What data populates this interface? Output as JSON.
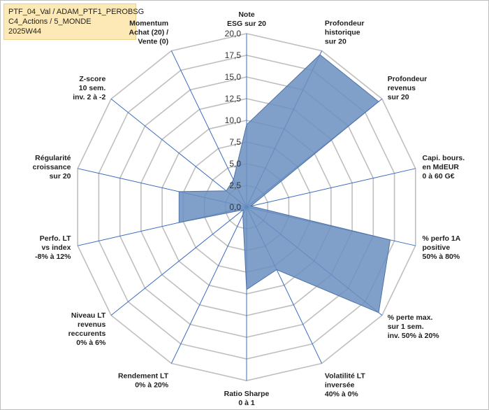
{
  "header": {
    "lines": [
      "PTF_04_Val / ADAM_PTF1_PEROBSG",
      "C4_Actions / 5_MONDE",
      "2025W44"
    ]
  },
  "colors": {
    "fill": "#6a8fc0",
    "stroke": "#4f72a6",
    "axis": "#3b6bbf",
    "grid": "#bfbfbf"
  },
  "chart_data": {
    "type": "radar",
    "title": "",
    "range": [
      0,
      20
    ],
    "tick_labels": [
      "0,0",
      "2,5",
      "5,0",
      "7,5",
      "10,0",
      "12,5",
      "15,0",
      "17,5",
      "20,0"
    ],
    "grid": true,
    "axes": [
      {
        "label_lines": [
          "Note",
          "ESG sur 20"
        ],
        "value": 9.5
      },
      {
        "label_lines": [
          "Profondeur",
          "historique",
          "sur 20"
        ],
        "value": 19.5
      },
      {
        "label_lines": [
          "Profondeur",
          "revenus",
          "sur 20"
        ],
        "value": 19.5
      },
      {
        "label_lines": [
          "Capi. bours.",
          "en MdEUR",
          "0 à 60 G€"
        ],
        "value": 0.5
      },
      {
        "label_lines": [
          "% perfo 1A",
          "positive",
          "50% à 80%"
        ],
        "value": 17.0
      },
      {
        "label_lines": [
          "% perte max.",
          "sur 1 sem.",
          "inv. 50% à 20%"
        ],
        "value": 19.5
      },
      {
        "label_lines": [
          "Volatilité LT",
          "inversée",
          "40% à 0%"
        ],
        "value": 8.0
      },
      {
        "label_lines": [
          "Ratio Sharpe",
          "0 à 1"
        ],
        "value": 9.5
      },
      {
        "label_lines": [
          "Rendement LT",
          "0% à 20%"
        ],
        "value": 1.0
      },
      {
        "label_lines": [
          "Niveau LT",
          "revenus",
          "reccurents",
          "0% à 6%"
        ],
        "value": 0.5
      },
      {
        "label_lines": [
          "Perfo. LT",
          "vs index",
          "-8% à 12%"
        ],
        "value": 8.0
      },
      {
        "label_lines": [
          "Régularité",
          "croissance",
          "sur 20"
        ],
        "value": 8.0
      },
      {
        "label_lines": [
          "Z-score",
          "10 sem.",
          "inv. 2 à -2"
        ],
        "value": 3.0
      },
      {
        "label_lines": [
          "Momentum",
          "Achat (20) /",
          "Vente (0)"
        ],
        "value": 3.5
      }
    ]
  }
}
